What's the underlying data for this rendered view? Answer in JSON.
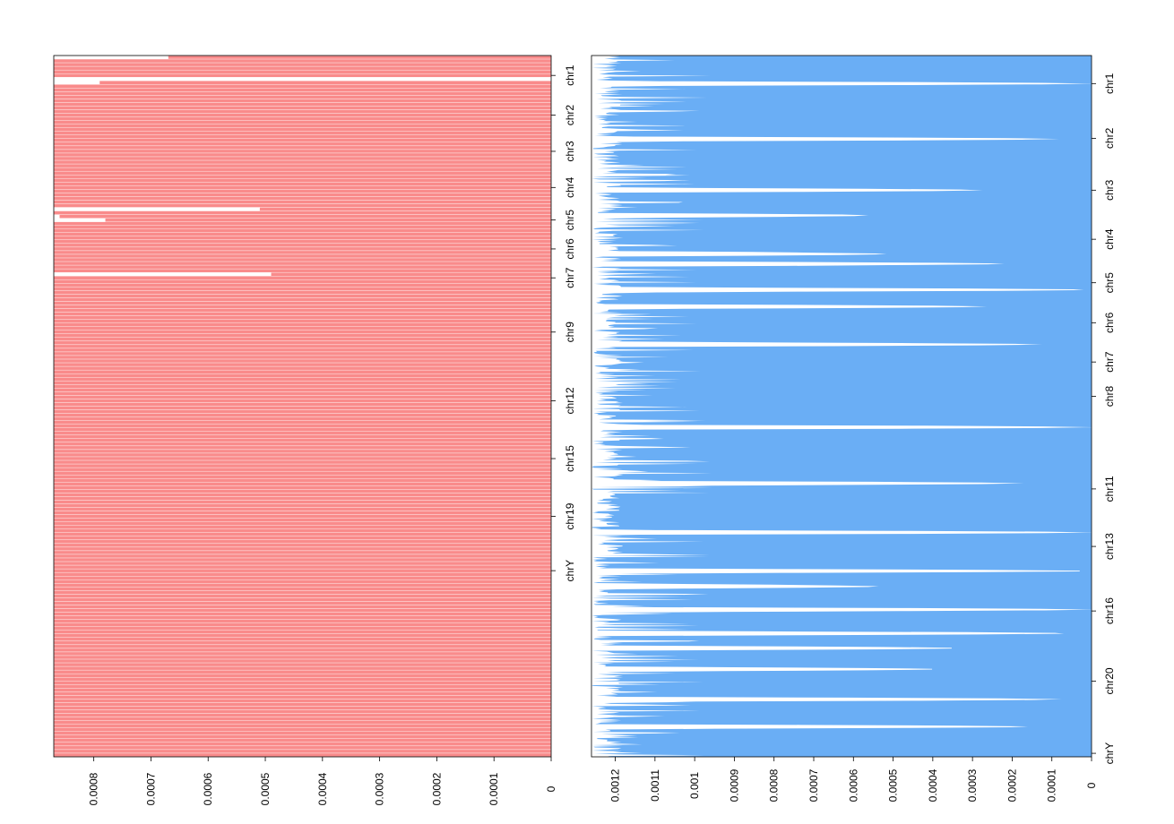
{
  "chart_data": [
    {
      "type": "bar",
      "orientation": "horizontal-reversed",
      "title": "",
      "xlabel": "",
      "ylabel": "",
      "color": "#f98b8b",
      "xlim": [
        0.00087,
        0
      ],
      "x_ticks": [
        0.0008,
        0.0007,
        0.0006,
        0.0005,
        0.0004,
        0.0003,
        0.0002,
        0.0001,
        0
      ],
      "x_tick_labels": [
        "0.0008",
        "0.0007",
        "0.0006",
        "0.0005",
        "0.0004",
        "0.0003",
        "0.0002",
        "0.0001",
        "0"
      ],
      "chromosome_labels": [
        {
          "label": "chr1",
          "bin": 5
        },
        {
          "label": "chr2",
          "bin": 16
        },
        {
          "label": "chr3",
          "bin": 26
        },
        {
          "label": "chr4",
          "bin": 36
        },
        {
          "label": "chr5",
          "bin": 45
        },
        {
          "label": "chr6",
          "bin": 53
        },
        {
          "label": "chr7",
          "bin": 61
        },
        {
          "label": "chr9",
          "bin": 76
        },
        {
          "label": "chr12",
          "bin": 95
        },
        {
          "label": "chr15",
          "bin": 111
        },
        {
          "label": "chr19",
          "bin": 127
        },
        {
          "label": "chrY",
          "bin": 142
        }
      ],
      "values": [
        0.00067,
        0.00087,
        0.00087,
        0.00087,
        0.00087,
        0.00087,
        0.0,
        0.00079,
        0.00087,
        0.00087,
        0.00087,
        0.00087,
        0.00087,
        0.00087,
        0.00087,
        0.00087,
        0.00087,
        0.00087,
        0.00087,
        0.00087,
        0.00087,
        0.00087,
        0.00087,
        0.00087,
        0.00087,
        0.00087,
        0.00087,
        0.00087,
        0.00087,
        0.00087,
        0.00087,
        0.00087,
        0.00087,
        0.00087,
        0.00087,
        0.00087,
        0.00087,
        0.00087,
        0.00087,
        0.00087,
        0.00087,
        0.00087,
        0.00051,
        0.00087,
        0.00086,
        0.00078,
        0.00087,
        0.00087,
        0.00087,
        0.00087,
        0.00087,
        0.00087,
        0.00087,
        0.00087,
        0.00087,
        0.00087,
        0.00087,
        0.00087,
        0.00087,
        0.00087,
        0.00049,
        0.00087,
        0.00087,
        0.00087,
        0.00087,
        0.00087,
        0.00087,
        0.00087,
        0.00087,
        0.00087,
        0.00087,
        0.00087,
        0.00087,
        0.00087,
        0.00087,
        0.00087,
        0.00087,
        0.00087,
        0.00087,
        0.00087,
        0.00087,
        0.00087,
        0.00087,
        0.00087,
        0.00087,
        0.00087,
        0.00087,
        0.00087,
        0.00087,
        0.00087,
        0.00087,
        0.00087,
        0.00087,
        0.00087,
        0.00087,
        0.00087,
        0.00087,
        0.00087,
        0.00087,
        0.00087,
        0.00087,
        0.00087,
        0.00087,
        0.00087,
        0.00087,
        0.00087,
        0.00087,
        0.00087,
        0.00087,
        0.00087,
        0.00087,
        0.00087,
        0.00087,
        0.00087,
        0.00087,
        0.00087,
        0.00087,
        0.00087,
        0.00087,
        0.00087,
        0.00087,
        0.00087,
        0.00087,
        0.00087,
        0.00087,
        0.00087,
        0.00087,
        0.00087,
        0.00087,
        0.00087,
        0.00087,
        0.00087,
        0.00087,
        0.00087,
        0.00087,
        0.00087,
        0.00087,
        0.00087,
        0.00087,
        0.00087,
        0.00087,
        0.00087,
        0.00087,
        0.00087,
        0.00087,
        0.00087,
        0.00087,
        0.00087,
        0.00087,
        0.00087,
        0.00087,
        0.00087,
        0.00087,
        0.00087,
        0.00087,
        0.00087,
        0.00087,
        0.00087,
        0.00087,
        0.00087,
        0.00087,
        0.00087,
        0.00087,
        0.00087,
        0.00087,
        0.00087,
        0.00087,
        0.00087,
        0.00087,
        0.00087,
        0.00087,
        0.00087,
        0.00087,
        0.00087,
        0.00087,
        0.00087,
        0.00087,
        0.00087,
        0.00087,
        0.00087,
        0.00087,
        0.00087,
        0.00087,
        0.00087,
        0.00087,
        0.00087,
        0.00087,
        0.00087,
        0.00087,
        0.00087,
        0.00087,
        0.00087,
        0.00087,
        0.00087
      ]
    },
    {
      "type": "area",
      "orientation": "horizontal-reversed",
      "title": "",
      "xlabel": "",
      "ylabel": "",
      "color": "#6aaef5",
      "xlim": [
        0.00126,
        0
      ],
      "x_ticks": [
        0.0012,
        0.0011,
        0.001,
        0.0009,
        0.0008,
        0.0007,
        0.0006,
        0.0005,
        0.0004,
        0.0003,
        0.0002,
        0.0001,
        0
      ],
      "x_tick_labels": [
        "0.0012",
        "0.0011",
        "0.001",
        "0.0009",
        "0.0008",
        "0.0007",
        "0.0006",
        "0.0005",
        "0.0004",
        "0.0003",
        "0.0002",
        "0.0001",
        "0"
      ],
      "chromosome_labels": [
        {
          "label": "chr1",
          "frac": 0.04
        },
        {
          "label": "chr2",
          "frac": 0.118
        },
        {
          "label": "chr3",
          "frac": 0.192
        },
        {
          "label": "chr4",
          "frac": 0.262
        },
        {
          "label": "chr5",
          "frac": 0.324
        },
        {
          "label": "chr6",
          "frac": 0.381
        },
        {
          "label": "chr7",
          "frac": 0.437
        },
        {
          "label": "chr8",
          "frac": 0.486
        },
        {
          "label": "chr11",
          "frac": 0.618
        },
        {
          "label": "chr13",
          "frac": 0.7
        },
        {
          "label": "chr16",
          "frac": 0.792
        },
        {
          "label": "chr20",
          "frac": 0.892
        },
        {
          "label": "chrY",
          "frac": 0.995
        }
      ],
      "dips": [
        {
          "frac": 0.04,
          "value": 0.0
        },
        {
          "frac": 0.119,
          "value": 8e-05
        },
        {
          "frac": 0.192,
          "value": 0.00027
        },
        {
          "frac": 0.228,
          "value": 0.00056
        },
        {
          "frac": 0.283,
          "value": 0.00051
        },
        {
          "frac": 0.297,
          "value": 0.00021
        },
        {
          "frac": 0.334,
          "value": 0.0
        },
        {
          "frac": 0.358,
          "value": 0.00026
        },
        {
          "frac": 0.412,
          "value": 0.00012
        },
        {
          "frac": 0.53,
          "value": 0.0
        },
        {
          "frac": 0.61,
          "value": 0.00017
        },
        {
          "frac": 0.68,
          "value": 0.0
        },
        {
          "frac": 0.735,
          "value": 0.0
        },
        {
          "frac": 0.757,
          "value": 0.00053
        },
        {
          "frac": 0.79,
          "value": 0.0
        },
        {
          "frac": 0.824,
          "value": 5e-05
        },
        {
          "frac": 0.845,
          "value": 0.00033
        },
        {
          "frac": 0.875,
          "value": 0.00038
        },
        {
          "frac": 0.918,
          "value": 7e-05
        },
        {
          "frac": 0.957,
          "value": 0.00015
        }
      ]
    }
  ]
}
